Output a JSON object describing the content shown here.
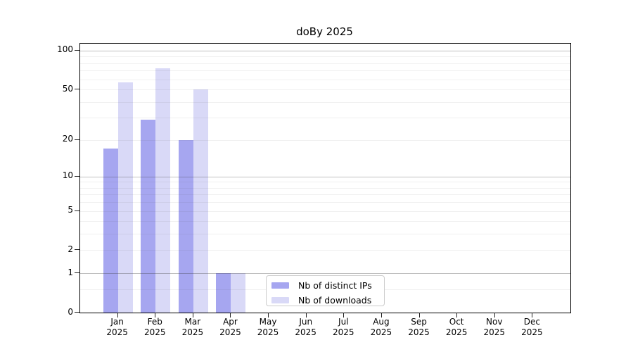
{
  "chart_data": {
    "type": "bar",
    "title": "doBy 2025",
    "categories": [
      "Jan 2025",
      "Feb 2025",
      "Mar 2025",
      "Apr 2025",
      "May 2025",
      "Jun 2025",
      "Jul 2025",
      "Aug 2025",
      "Sep 2025",
      "Oct 2025",
      "Nov 2025",
      "Dec 2025"
    ],
    "series": [
      {
        "name": "Nb of distinct IPs",
        "color": "#a6a6f0",
        "values": [
          17,
          29,
          20,
          1,
          0,
          0,
          0,
          0,
          0,
          0,
          0,
          0
        ]
      },
      {
        "name": "Nb of downloads",
        "color": "#d9d9f7",
        "values": [
          57,
          73,
          50,
          1,
          0,
          0,
          0,
          0,
          0,
          0,
          0,
          0
        ]
      }
    ],
    "y_axis": {
      "scale": "log1p",
      "tick_values": [
        0,
        1,
        2,
        5,
        10,
        20,
        50,
        100
      ],
      "tick_labels": [
        "0",
        "1",
        "2",
        "5",
        "10",
        "20",
        "50",
        "100"
      ],
      "major_gridlines": [
        1,
        10,
        100
      ],
      "minor_gridlines": [
        0.5,
        2,
        3,
        4,
        5,
        6,
        7,
        8,
        9,
        20,
        30,
        40,
        50,
        60,
        70,
        80,
        90
      ],
      "ylim": [
        0,
        113.5
      ]
    },
    "legend_position": "lower center-left, inside plot",
    "grid": true,
    "colors": {
      "major_grid": "#3c3c3c",
      "major_grid_opacity": 0.32,
      "minor_grid": "#3c3c3c",
      "minor_grid_opacity": 0.08,
      "axis": "#000000",
      "background": "#ffffff"
    }
  }
}
